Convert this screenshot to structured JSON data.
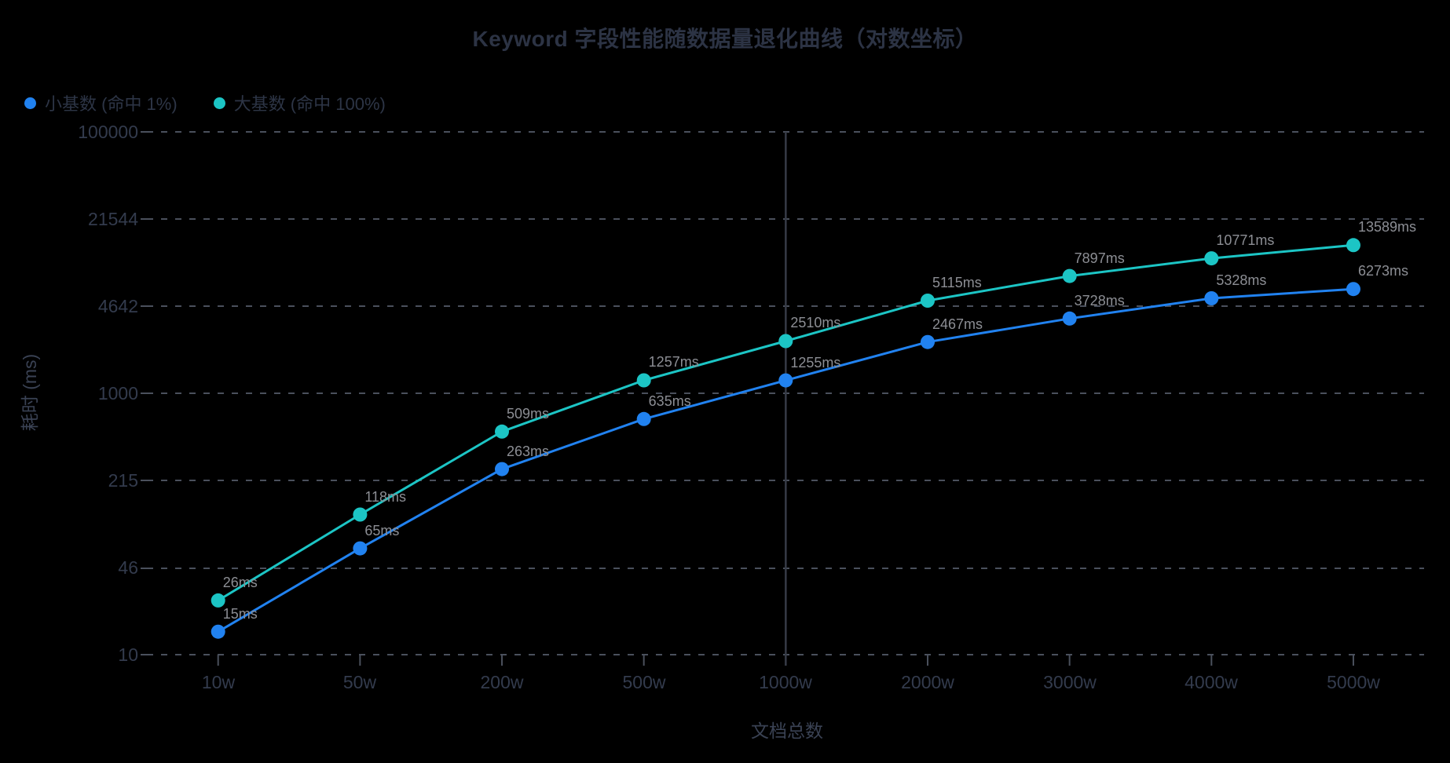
{
  "chart_data": {
    "type": "line",
    "title": "Keyword 字段性能随数据量退化曲线（对数坐标）",
    "xlabel": "文档总数",
    "ylabel": "耗时 (ms)",
    "x_categories": [
      "10w",
      "50w",
      "200w",
      "500w",
      "1000w",
      "2000w",
      "3000w",
      "4000w",
      "5000w"
    ],
    "y_scale": "log",
    "ylim": [
      10,
      100000
    ],
    "y_ticks": [
      100000,
      21544,
      4642,
      1000,
      215,
      46,
      10
    ],
    "y_tick_labels": [
      "100000",
      "21544",
      "4642",
      "1000",
      "215",
      "46",
      "10"
    ],
    "grid": "horizontal dashed gridlines on",
    "legend_position": "top-left",
    "mark_line_at_category": "1000w",
    "series": [
      {
        "name": "小基数 (命中 1%)",
        "color": "#2182f0",
        "values": [
          15,
          65,
          263,
          635,
          1255,
          2467,
          3728,
          5328,
          6273
        ],
        "point_labels": [
          "15ms",
          "65ms",
          "263ms",
          "635ms",
          "1255ms",
          "2467ms",
          "3728ms",
          "5328ms",
          "6273ms"
        ]
      },
      {
        "name": "大基数 (命中 100%)",
        "color": "#1cc5c5",
        "values": [
          26,
          118,
          509,
          1257,
          2510,
          5115,
          7897,
          10771,
          13589
        ],
        "point_labels": [
          "26ms",
          "118ms",
          "509ms",
          "1257ms",
          "2510ms",
          "5115ms",
          "7897ms",
          "10771ms",
          "13589ms"
        ]
      }
    ]
  },
  "colors": {
    "background": "#000000",
    "title_text": "#2c3344",
    "tick_text": "#333b4d",
    "data_label_text": "#8c8e94",
    "gridline": "#4a505c",
    "mark_line": "#363b46",
    "series_blue": "#2182f0",
    "series_teal": "#1cc5c5"
  }
}
